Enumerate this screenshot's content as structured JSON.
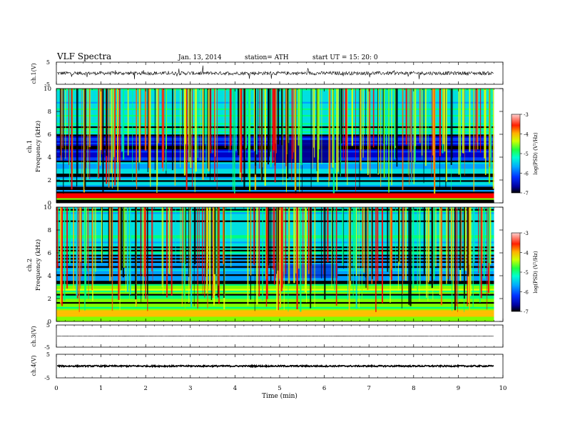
{
  "header": {
    "title": "VLF  Spectra",
    "date": "Jan.  13,  2014",
    "station": "station= ATH",
    "start": "start  UT  =    15: 20: 0"
  },
  "chart_data": [
    {
      "type": "line",
      "panel": "ch1-waveform",
      "ylabel": "ch.1(V)",
      "ylim": [
        -5,
        5
      ],
      "ytick_labels": [
        "5",
        "-5"
      ],
      "xlim": [
        0,
        10
      ],
      "baseline": 0,
      "noise_amplitude": 0.8,
      "data_extent_min": 9.8
    },
    {
      "type": "heatmap",
      "panel": "ch1-spectrogram",
      "ylabel": "ch.1\nFrequency (kHz)",
      "ylabel_lines": [
        "ch.1",
        "Frequency  (kHz)"
      ],
      "ylim": [
        0,
        10
      ],
      "ytick_labels": [
        "0",
        "2",
        "4",
        "6",
        "8",
        "10"
      ],
      "xlim": [
        0,
        10
      ],
      "data_extent_min": 9.8,
      "colorbar": {
        "label": "log(PSD) (V²/Hz)",
        "range": [
          -7,
          -3
        ],
        "tick_labels": [
          "-3",
          "-4",
          "-5",
          "-6",
          "-7"
        ]
      },
      "quiet_region_min": [
        4.9,
        6.3
      ],
      "quiet_region_khz": [
        3.5,
        5.5
      ]
    },
    {
      "type": "heatmap",
      "panel": "ch2-spectrogram",
      "ylabel_lines": [
        "ch.2",
        "Frequency  (kHz)"
      ],
      "ylim": [
        0,
        10
      ],
      "ytick_labels": [
        "0",
        "2",
        "4",
        "6",
        "8",
        "10"
      ],
      "xlim": [
        0,
        10
      ],
      "data_extent_min": 9.8,
      "colorbar": {
        "label": "log(PSD) (V²/Hz)",
        "range": [
          -7,
          -3
        ],
        "tick_labels": [
          "-3",
          "-4",
          "-5",
          "-6",
          "-7"
        ]
      },
      "quiet_region_min": [
        4.9,
        6.3
      ],
      "quiet_region_khz": [
        3.8,
        5.0
      ]
    },
    {
      "type": "line",
      "panel": "ch3-waveform",
      "ylabel": "ch.3(V)",
      "ylim": [
        -5,
        5
      ],
      "ytick_labels": [
        "5",
        "-5"
      ],
      "xlim": [
        0,
        10
      ],
      "baseline": 0,
      "noise_amplitude": 0.05,
      "data_extent_min": 9.8
    },
    {
      "type": "line",
      "panel": "ch4-waveform",
      "ylabel": "ch.4(V)",
      "ylim": [
        -5,
        5
      ],
      "ytick_labels": [
        "5",
        "-5"
      ],
      "xlim": [
        0,
        10
      ],
      "xlabel": "Time  (min)",
      "xtick_labels": [
        "0",
        "1",
        "2",
        "3",
        "4",
        "5",
        "6",
        "7",
        "8",
        "9",
        "10"
      ],
      "baseline": 0,
      "noise_amplitude": 0.3,
      "data_extent_min": 9.8
    }
  ],
  "colors": {
    "colormap": [
      "#000000",
      "#00005a",
      "#0000c8",
      "#0040ff",
      "#00a0ff",
      "#00e0e0",
      "#00ff80",
      "#80ff00",
      "#e8ff00",
      "#ffc000",
      "#ff6000",
      "#ff0000",
      "#ffb0b0"
    ]
  }
}
